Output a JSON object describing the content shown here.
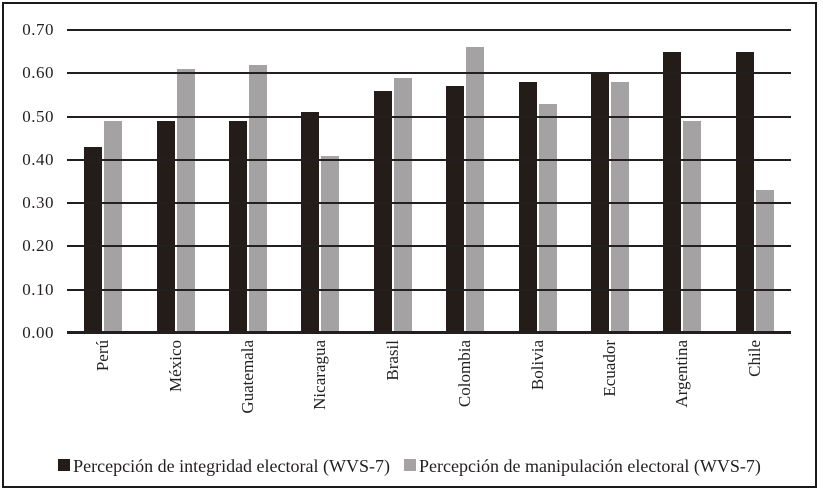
{
  "chart_data": {
    "type": "bar",
    "categories": [
      "Perú",
      "México",
      "Guatemala",
      "Nicaragua",
      "Brasil",
      "Colombia",
      "Bolivia",
      "Ecuador",
      "Argentina",
      "Chile"
    ],
    "series": [
      {
        "name": "Percepción de integridad electoral (WVS-7)",
        "color": "#241c18",
        "values": [
          0.43,
          0.49,
          0.49,
          0.51,
          0.56,
          0.57,
          0.58,
          0.6,
          0.65,
          0.65
        ]
      },
      {
        "name": "Percepción de manipulación electoral (WVS-7)",
        "color": "#a5a2a3",
        "values": [
          0.49,
          0.61,
          0.62,
          0.41,
          0.59,
          0.66,
          0.53,
          0.58,
          0.49,
          0.33
        ]
      }
    ],
    "title": "",
    "xlabel": "",
    "ylabel": "",
    "ylim": [
      0.0,
      0.7
    ],
    "ytick_step": 0.1,
    "ytick_labels": [
      "0.00",
      "0.10",
      "0.20",
      "0.30",
      "0.40",
      "0.50",
      "0.60",
      "0.70"
    ],
    "grid": true,
    "gridlines_over_bars": true,
    "legend_position": "bottom"
  },
  "colors": {
    "grid": "#231f20",
    "border": "#1a1a1a",
    "background": "#ffffff",
    "bar_dark": "#241c18",
    "bar_gray": "#a5a2a3"
  }
}
